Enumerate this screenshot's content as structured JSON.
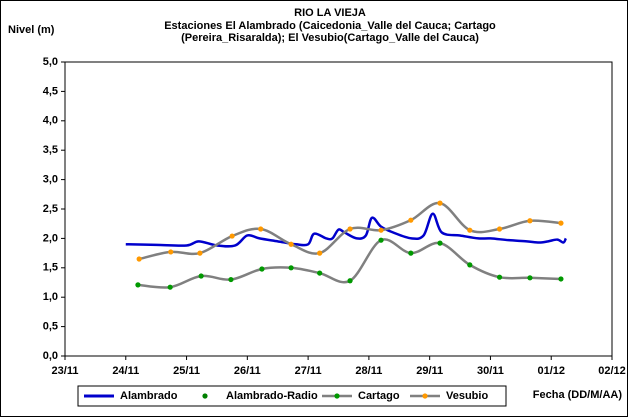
{
  "chart_data": {
    "type": "line",
    "title": "RIO LA VIEJA",
    "subtitle": [
      "Estaciones El Alambrado (Caicedonia_Valle del Cauca; Cartago",
      "(Pereira_Risaralda);  El Vesubio(Cartago_Valle del Cauca)"
    ],
    "y_label": "Nivel (m)",
    "x_label": "Fecha (DD/M/AA)",
    "xlim": [
      0,
      9
    ],
    "xticks": [
      {
        "value": 0,
        "label": "23/11"
      },
      {
        "value": 1,
        "label": "24/11"
      },
      {
        "value": 2,
        "label": "25/11"
      },
      {
        "value": 3,
        "label": "26/11"
      },
      {
        "value": 4,
        "label": "27/11"
      },
      {
        "value": 5,
        "label": "28/11"
      },
      {
        "value": 6,
        "label": "29/11"
      },
      {
        "value": 7,
        "label": "30/11"
      },
      {
        "value": 8,
        "label": "01/12"
      },
      {
        "value": 9,
        "label": "02/12"
      }
    ],
    "ylim": [
      0,
      5
    ],
    "yticks": [
      {
        "value": 0,
        "label": "0,0"
      },
      {
        "value": 0.5,
        "label": "0,5"
      },
      {
        "value": 1,
        "label": "1,0"
      },
      {
        "value": 1.5,
        "label": "1,5"
      },
      {
        "value": 2,
        "label": "2,0"
      },
      {
        "value": 2.5,
        "label": "2,5"
      },
      {
        "value": 3,
        "label": "3,0"
      },
      {
        "value": 3.5,
        "label": "3,5"
      },
      {
        "value": 4,
        "label": "4,0"
      },
      {
        "value": 4.5,
        "label": "4,5"
      },
      {
        "value": 5,
        "label": "5,0"
      }
    ],
    "series": [
      {
        "name": "Alambrado",
        "color": "#0000cc",
        "line_color": "#0000cc",
        "marker": false,
        "x": [
          1.0,
          1.5,
          2.0,
          2.2,
          2.5,
          2.8,
          3.0,
          3.2,
          3.5,
          3.8,
          4.0,
          4.1,
          4.3,
          4.4,
          4.5,
          4.6,
          4.8,
          4.95,
          5.05,
          5.2,
          5.4,
          5.7,
          5.9,
          6.05,
          6.2,
          6.5,
          6.8,
          7.0,
          7.3,
          7.6,
          7.8,
          7.95,
          8.1,
          8.2,
          8.24
        ],
        "values": [
          1.9,
          1.89,
          1.88,
          1.95,
          1.88,
          1.88,
          2.05,
          2.0,
          1.95,
          1.9,
          1.9,
          2.08,
          2.0,
          2.0,
          2.15,
          2.1,
          2.0,
          2.05,
          2.35,
          2.2,
          2.1,
          2.0,
          2.05,
          2.42,
          2.1,
          2.05,
          2.0,
          2.0,
          1.97,
          1.95,
          1.93,
          1.95,
          1.98,
          1.93,
          2.0
        ]
      },
      {
        "name": "Alambrado-Radio",
        "color": "#008000",
        "marker": true,
        "x": [],
        "values": []
      },
      {
        "name": "Cartago",
        "color": "#009900",
        "line_color": "#808080",
        "marker": true,
        "x": [
          1.2,
          1.73,
          2.24,
          2.73,
          3.24,
          3.72,
          4.19,
          4.69,
          5.2,
          5.69,
          6.17,
          6.66,
          7.15,
          7.65,
          8.16
        ],
        "values": [
          1.21,
          1.17,
          1.36,
          1.3,
          1.48,
          1.5,
          1.41,
          1.28,
          1.97,
          1.75,
          1.92,
          1.55,
          1.34,
          1.33,
          1.31
        ]
      },
      {
        "name": "Vesubio",
        "color": "#ff9900",
        "line_color": "#808080",
        "marker": true,
        "x": [
          1.22,
          1.74,
          2.22,
          2.75,
          3.22,
          3.72,
          4.19,
          4.69,
          5.2,
          5.69,
          6.17,
          6.66,
          7.15,
          7.65,
          8.16
        ],
        "values": [
          1.65,
          1.77,
          1.75,
          2.04,
          2.16,
          1.9,
          1.75,
          2.16,
          2.14,
          2.31,
          2.6,
          2.14,
          2.16,
          2.3,
          2.26
        ]
      }
    ]
  }
}
